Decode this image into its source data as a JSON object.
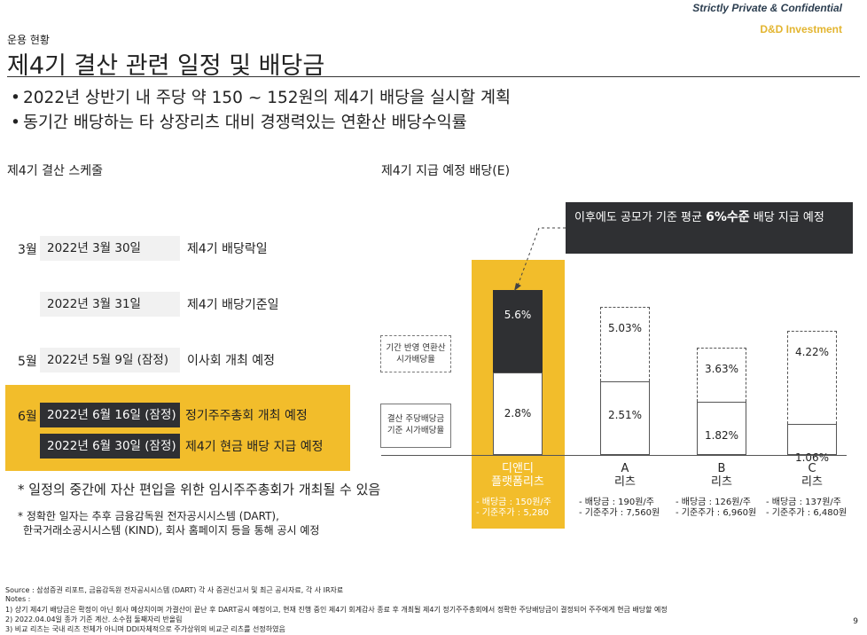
{
  "header": {
    "confidential": "Strictly Private & Confidential",
    "brand": "D&D Investment",
    "section": "운용 현황",
    "title": "제4기 결산 관련 일정 및 배당금"
  },
  "bullets": [
    "2022년 상반기 내 주당 약 150 ~ 152원의 제4기 배당을 실시할 계획",
    "동기간 배당하는 타 상장리츠 대비 경쟁력있는 연환산 배당수익률"
  ],
  "schedule": {
    "heading": "제4기 결산 스케줄",
    "rows": [
      {
        "month": "3월",
        "date": "2022년 3월 30일",
        "event": "제4기 배당락일"
      },
      {
        "month": "",
        "date": "2022년 3월 31일",
        "event": "제4기 배당기준일"
      },
      {
        "month": "5월",
        "date": "2022년 5월 9일 (잠정)",
        "event": "이사회 개최 예정"
      },
      {
        "month": "6월",
        "date": "2022년 6월 16일 (잠정)",
        "event": "정기주주총회 개최 예정"
      },
      {
        "month": "",
        "date": "2022년 6월 30일 (잠정)",
        "event": "제4기 현금 배당 지급 예정"
      }
    ],
    "note1": "* 일정의 중간에 자산 편입을 위한 임시주주총회가 개최될 수 있음",
    "note2_line1": "* 정확한 일자는 추후 금융감독원 전자공시시스템 (DART),",
    "note2_line2": "한국거래소공시시스템 (KIND), 회사 홈페이지  등을 통해 공시 예정"
  },
  "chart_data": {
    "type": "bar",
    "stacked": true,
    "title": "제4기 지급 예정 배당(E)",
    "categories": [
      "디앤디 플랫폼리츠",
      "A 리츠",
      "B 리츠",
      "C 리츠"
    ],
    "category_lines": [
      [
        "디앤디",
        "플랫폼리츠"
      ],
      [
        "A",
        "리츠"
      ],
      [
        "B",
        "리츠"
      ],
      [
        "C",
        "리츠"
      ]
    ],
    "series": [
      {
        "name": "결산 주당배당금 기준 시가배당율",
        "values": [
          2.8,
          2.51,
          1.82,
          1.06
        ],
        "labels": [
          "2.8%",
          "2.51%",
          "1.82%",
          "1.06%"
        ]
      },
      {
        "name": "기간 반영 연환산 시가배당율",
        "values": [
          5.6,
          5.03,
          3.63,
          4.22
        ],
        "labels": [
          "5.6%",
          "5.03%",
          "3.63%",
          "4.22%"
        ]
      }
    ],
    "details": [
      [
        "- 배당금 : 150원/주",
        "- 기준주가 : 5,280"
      ],
      [
        "- 배당금 : 190원/주",
        "- 기준주가 : 7,560원"
      ],
      [
        "- 배당금 : 126원/주",
        "- 기준주가 : 6,960원"
      ],
      [
        "- 배당금 : 137원/주",
        "- 기준주가 : 6,480원"
      ]
    ],
    "legend_upper": [
      "기간 반영 연환산",
      "시가배당율"
    ],
    "legend_lower": [
      "결산 주당배당금",
      "기준 시가배당율"
    ],
    "callout": {
      "pre": "이후에도 공모가 기준 평균 ",
      "bold": "6%수준",
      "post": " 배당 지급 예정"
    },
    "highlight_color": "#f2bd2b",
    "dark_color": "#2f3033"
  },
  "footer": {
    "source": "Source : 삼성증권 리포트, 금융감독원 전자공시시스템 (DART) 각 사 증권신고서 및 최근 공시자료, 각 사 IR자료",
    "notes_label": "Notes :",
    "notes": [
      "1) 상기 제4기 배당금은 확정이 아닌 회사 예상치이며 가결산이 끝난 후 DART공시 예정이고, 현재 진행 중인 제4기 회계감사 종료 후 개최될 제4기 정기주주총회에서 정확한 주당배당금이 결정되어 주주에게 현금 배당할 예정",
      "2) 2022.04.04일 종가 기준 계산. 소수점 둘째자리 반올림",
      "3) 비교 리츠는 국내 리츠 전체가 아니며 DDI자체적으로 주가상위의 비교군 리츠를 선정하였음"
    ],
    "page": "9"
  }
}
